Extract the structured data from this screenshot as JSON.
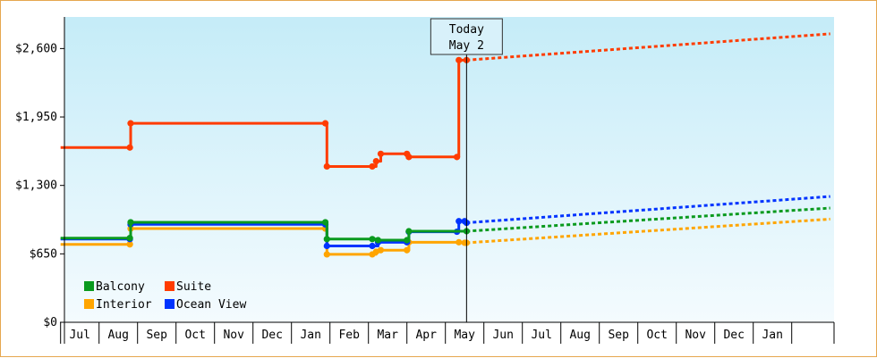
{
  "chart_data": {
    "type": "line",
    "title": "",
    "xlabel": "",
    "ylabel": "",
    "y_ticks": [
      "$0",
      "$650",
      "$1,300",
      "$1,950",
      "$2,600"
    ],
    "ylim": [
      0,
      2900
    ],
    "x_ticks": [
      "Jul",
      "Aug",
      "Sep",
      "Oct",
      "Nov",
      "Dec",
      "Jan",
      "Feb",
      "Mar",
      "Apr",
      "May",
      "Jun",
      "Jul",
      "Aug",
      "Sep",
      "Oct",
      "Nov",
      "Dec",
      "Jan"
    ],
    "x_range_months": [
      -0.4,
      19.6
    ],
    "today_marker": {
      "line1": "Today",
      "line2": "May 2",
      "x": 10.05
    },
    "colors": {
      "Balcony": "#0a9a1e",
      "Suite": "#ff3c00",
      "Interior": "#ffa500",
      "Ocean View": "#0033ff",
      "background_top": "#c5ecf8",
      "background_bottom": "#f4fbfe",
      "frame": "#e6a74f"
    },
    "legend": {
      "placement": "bottom-left",
      "entries": [
        "Balcony",
        "Suite",
        "Interior",
        "Ocean View"
      ]
    },
    "series": [
      {
        "name": "Suite",
        "step_points": [
          [
            -0.5,
            1660
          ],
          [
            1.3,
            1660
          ],
          [
            1.32,
            1890
          ],
          [
            6.38,
            1890
          ],
          [
            6.42,
            1480
          ],
          [
            6.7,
            1480
          ],
          [
            7.0,
            1480
          ],
          [
            7.6,
            1480
          ],
          [
            7.7,
            1530
          ],
          [
            7.82,
            1600
          ],
          [
            8.5,
            1600
          ],
          [
            8.55,
            1570
          ],
          [
            9.8,
            1570
          ],
          [
            9.85,
            2490
          ],
          [
            10.0,
            2490
          ],
          [
            10.05,
            2490
          ]
        ],
        "projection": [
          [
            10.05,
            2490
          ],
          [
            19.5,
            2740
          ]
        ]
      },
      {
        "name": "Balcony",
        "step_points": [
          [
            -0.5,
            800
          ],
          [
            1.3,
            800
          ],
          [
            1.32,
            950
          ],
          [
            6.38,
            950
          ],
          [
            6.42,
            790
          ],
          [
            6.7,
            790
          ],
          [
            7.0,
            790
          ],
          [
            7.6,
            790
          ],
          [
            7.75,
            780
          ],
          [
            8.5,
            780
          ],
          [
            8.55,
            865
          ],
          [
            9.8,
            865
          ],
          [
            9.85,
            865
          ],
          [
            10.05,
            865
          ]
        ],
        "projection": [
          [
            10.05,
            865
          ],
          [
            19.5,
            1085
          ]
        ]
      },
      {
        "name": "Interior",
        "step_points": [
          [
            -0.5,
            740
          ],
          [
            1.3,
            740
          ],
          [
            1.32,
            890
          ],
          [
            6.38,
            890
          ],
          [
            6.42,
            645
          ],
          [
            6.7,
            645
          ],
          [
            7.0,
            645
          ],
          [
            7.6,
            645
          ],
          [
            7.7,
            670
          ],
          [
            7.82,
            685
          ],
          [
            8.5,
            685
          ],
          [
            8.55,
            760
          ],
          [
            9.8,
            760
          ],
          [
            9.85,
            760
          ],
          [
            10.0,
            755
          ],
          [
            10.05,
            755
          ]
        ],
        "projection": [
          [
            10.05,
            755
          ],
          [
            19.5,
            980
          ]
        ]
      },
      {
        "name": "Ocean View",
        "step_points": [
          [
            -0.5,
            790
          ],
          [
            1.3,
            790
          ],
          [
            1.32,
            930
          ],
          [
            6.38,
            930
          ],
          [
            6.42,
            725
          ],
          [
            6.7,
            725
          ],
          [
            7.6,
            725
          ],
          [
            7.75,
            760
          ],
          [
            8.5,
            760
          ],
          [
            8.55,
            860
          ],
          [
            9.8,
            860
          ],
          [
            9.85,
            960
          ],
          [
            10.0,
            960
          ],
          [
            10.05,
            945
          ]
        ],
        "projection": [
          [
            10.05,
            945
          ],
          [
            19.5,
            1195
          ]
        ]
      }
    ]
  }
}
